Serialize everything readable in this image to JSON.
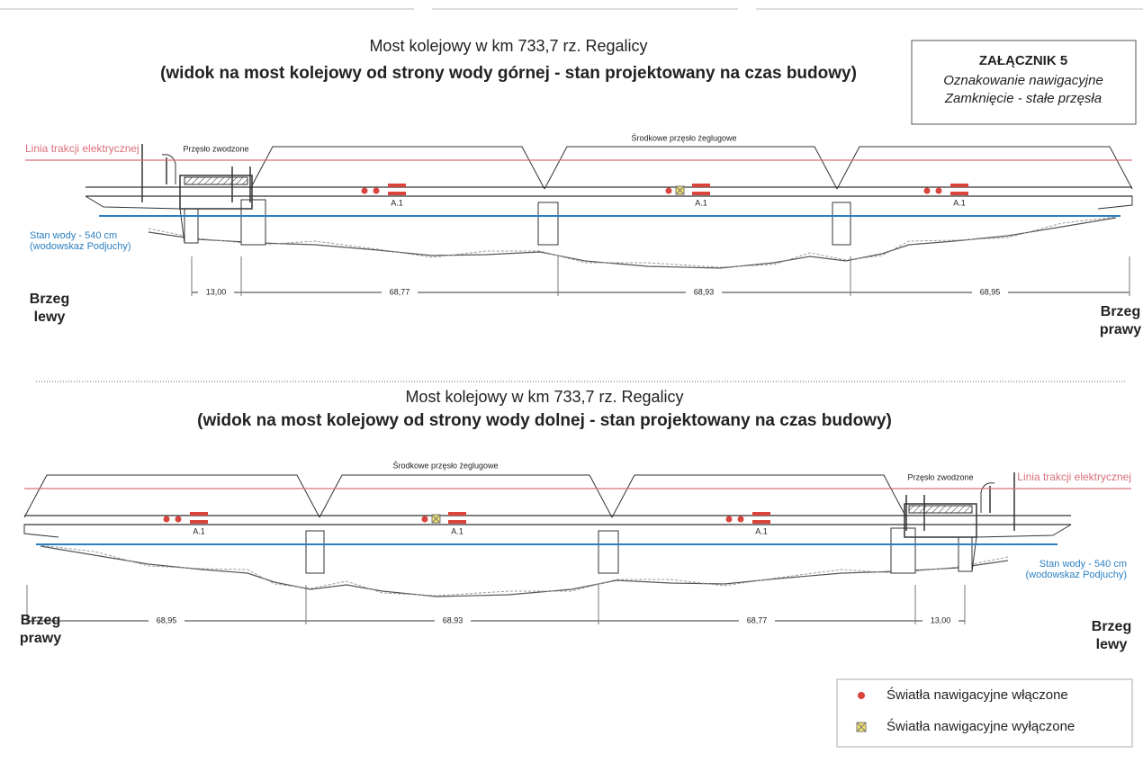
{
  "annex": {
    "title": "ZAŁĄCZNIK 5",
    "line1": "Oznakowanie nawigacyjne",
    "line2": "Zamknięcie - stałe przęsła"
  },
  "views": [
    {
      "title": "Most kolejowy w km 733,7 rz. Regalicy",
      "subtitle": "(widok na most kolejowy od strony wody górnej - stan projektowany na czas budowy)",
      "traction_label": "Linia trakcji elektrycznej",
      "lift_span_label": "Przęsło zwodzone",
      "nav_span_label": "Środkowe przęsło żeglugowe",
      "water_label": [
        "Stan wody - 540 cm",
        "(wodowskaz Podjuchy)"
      ],
      "signs": [
        "A.1",
        "A.1",
        "A.1"
      ],
      "dimensions": [
        "13,00",
        "68,77",
        "68,93",
        "68,95"
      ],
      "banks": [
        [
          "Brzeg",
          "lewy"
        ],
        [
          "Brzeg",
          "prawy"
        ]
      ]
    },
    {
      "title": "Most kolejowy w km 733,7 rz. Regalicy",
      "subtitle": "(widok na most kolejowy od strony wody dolnej - stan projektowany na czas budowy)",
      "traction_label": "Linia trakcji elektrycznej",
      "lift_span_label": "Przęsło zwodzone",
      "nav_span_label": "Środkowe przęsło żeglugowe",
      "water_label": [
        "Stan wody - 540 cm",
        "(wodowskaz Podjuchy)"
      ],
      "signs": [
        "A.1",
        "A.1",
        "A.1"
      ],
      "dimensions": [
        "68,95",
        "68,93",
        "68,77",
        "13,00"
      ],
      "banks": [
        [
          "Brzeg",
          "prawy"
        ],
        [
          "Brzeg",
          "lewy"
        ]
      ]
    }
  ],
  "legend": [
    "Światła nawigacyjne włączone",
    "Światła nawigacyjne wyłączone"
  ]
}
